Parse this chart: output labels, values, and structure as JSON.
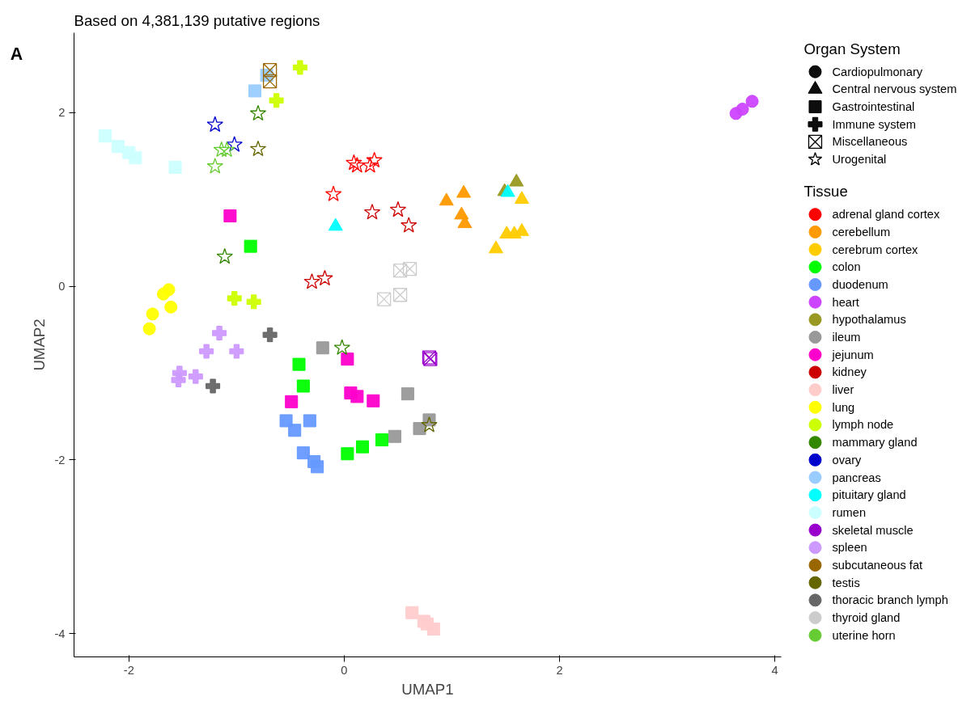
{
  "chart_data": {
    "type": "scatter",
    "title": "Based on 4,381,139 putative regions",
    "xlabel": "UMAP1",
    "ylabel": "UMAP2",
    "annotations": [
      "A"
    ],
    "xlim": [
      -2.51,
      4.06
    ],
    "ylim": [
      -4.27,
      2.92
    ],
    "xticks": [
      -2,
      0,
      2,
      4
    ],
    "yticks": [
      -4,
      -2,
      0,
      2
    ],
    "grid": false,
    "legend": "right",
    "legend_title": [
      "Organ System",
      "Tissue"
    ],
    "series": [
      {
        "name": "Cardiopulmonary",
        "marker": "circle",
        "color": "#000000"
      },
      {
        "name": "Central nervous system",
        "marker": "triangle",
        "color": "#000000"
      },
      {
        "name": "Gastrointestinal",
        "marker": "square",
        "color": "#000000"
      },
      {
        "name": "Immune system",
        "marker": "cross",
        "color": "#000000"
      },
      {
        "name": "Miscellaneous",
        "color": "#000000"
      },
      {
        "name": "Urogenital",
        "marker": "star",
        "color": "#000000"
      },
      {
        "name": "adrenal gland cortex",
        "marker": "star",
        "color": "#ff0000",
        "x": [
          0.09,
          0.12,
          0.24,
          0.28,
          -0.1
        ],
        "values": [
          1.42,
          1.39,
          1.39,
          1.45,
          1.06
        ]
      },
      {
        "name": "cerebellum",
        "marker": "triangle",
        "color": "#ff9900",
        "x": [
          0.95,
          1.11,
          1.09,
          1.12
        ],
        "values": [
          0.98,
          1.07,
          0.82,
          0.72
        ]
      },
      {
        "name": "cerebrum cortex",
        "marker": "triangle",
        "color": "#ffcc00",
        "x": [
          1.65,
          1.51,
          1.58,
          1.65,
          1.41
        ],
        "values": [
          1.0,
          0.6,
          0.6,
          0.63,
          0.43
        ]
      },
      {
        "name": "colon",
        "marker": "square",
        "color": "#00ff00",
        "x": [
          -0.87,
          -0.42,
          -0.38,
          0.03,
          0.17,
          0.35
        ],
        "values": [
          0.46,
          -0.9,
          -1.15,
          -1.93,
          -1.85,
          -1.77
        ]
      },
      {
        "name": "duodenum",
        "marker": "square",
        "color": "#6699ff",
        "x": [
          -0.54,
          -0.46,
          -0.32,
          -0.38,
          -0.28,
          -0.25
        ],
        "values": [
          -1.55,
          -1.66,
          -1.55,
          -1.92,
          -2.02,
          -2.08
        ]
      },
      {
        "name": "heart",
        "marker": "circle",
        "color": "#cc44ff",
        "x": [
          3.64,
          3.7,
          3.79
        ],
        "values": [
          1.99,
          2.04,
          2.13
        ]
      },
      {
        "name": "hypothalamus",
        "marker": "triangle",
        "color": "#999922",
        "x": [
          1.6,
          1.49
        ],
        "values": [
          1.2,
          1.09
        ]
      },
      {
        "name": "ileum",
        "marker": "square",
        "color": "#999999",
        "x": [
          -0.2,
          0.59,
          0.47,
          0.7,
          0.79
        ],
        "values": [
          -0.71,
          -1.24,
          -1.73,
          -1.64,
          -1.54
        ]
      },
      {
        "name": "jejunum",
        "marker": "square",
        "color": "#ff00cc",
        "x": [
          -1.06,
          0.03,
          0.06,
          0.12,
          0.27,
          -0.49
        ],
        "values": [
          0.81,
          -0.84,
          -1.23,
          -1.27,
          -1.32,
          -1.33
        ]
      },
      {
        "name": "kidney",
        "marker": "star",
        "color": "#cc0000",
        "x": [
          0.26,
          0.5,
          0.6,
          -0.3,
          -0.18
        ],
        "values": [
          0.85,
          0.88,
          0.7,
          0.05,
          0.09
        ]
      },
      {
        "name": "liver",
        "marker": "square",
        "color": "#ffcccc",
        "x": [
          0.63,
          0.74,
          0.77,
          0.83
        ],
        "values": [
          -3.76,
          -3.86,
          -3.89,
          -3.95
        ]
      },
      {
        "name": "lung",
        "marker": "circle",
        "color": "#ffff00",
        "x": [
          -1.63,
          -1.68,
          -1.61,
          -1.78,
          -1.81
        ],
        "values": [
          -0.04,
          -0.09,
          -0.24,
          -0.32,
          -0.49
        ]
      },
      {
        "name": "lymph node",
        "marker": "cross",
        "color": "#ccff00",
        "x": [
          -0.41,
          -0.63,
          -1.02,
          -0.84
        ],
        "values": [
          2.52,
          2.14,
          -0.14,
          -0.18
        ]
      },
      {
        "name": "mammary gland",
        "marker": "star",
        "color": "#338800",
        "x": [
          -0.8,
          -1.11,
          -0.02
        ],
        "values": [
          1.99,
          0.34,
          -0.71
        ]
      },
      {
        "name": "ovary",
        "marker": "star",
        "color": "#0000cc",
        "x": [
          -1.2,
          -1.02
        ],
        "values": [
          1.86,
          1.63
        ]
      },
      {
        "name": "pancreas",
        "marker": "square",
        "color": "#99ccff",
        "x": [
          -0.83,
          -0.72
        ],
        "values": [
          2.25,
          2.43
        ]
      },
      {
        "name": "pituitary gland",
        "marker": "triangle",
        "color": "#00ffff",
        "x": [
          -0.08,
          1.52
        ],
        "values": [
          0.69,
          1.08
        ]
      },
      {
        "name": "rumen",
        "marker": "square",
        "color": "#ccffff",
        "x": [
          -2.22,
          -2.1,
          -2.0,
          -1.94,
          -1.57
        ],
        "values": [
          1.73,
          1.61,
          1.54,
          1.48,
          1.37
        ]
      },
      {
        "name": "skeletal muscle",
        "color": "#9900cc",
        "x": [
          0.79,
          0.8
        ],
        "values": [
          -0.82,
          -0.84
        ]
      },
      {
        "name": "spleen",
        "marker": "cross",
        "color": "#cc99ff",
        "x": [
          -1.16,
          -1.28,
          -1.0,
          -1.38,
          -1.53,
          -1.54
        ],
        "values": [
          -0.54,
          -0.75,
          -0.75,
          -1.04,
          -1.0,
          -1.08
        ]
      },
      {
        "name": "subcutaneous fat",
        "color": "#996600",
        "x": [
          -0.69,
          -0.69
        ],
        "values": [
          2.49,
          2.36
        ]
      },
      {
        "name": "testis",
        "marker": "star",
        "color": "#666600",
        "x": [
          -0.8,
          0.79
        ],
        "values": [
          1.58,
          -1.6
        ]
      },
      {
        "name": "thoracic branch lymph",
        "marker": "cross",
        "color": "#666666",
        "x": [
          -0.69,
          -1.22
        ],
        "values": [
          -0.56,
          -1.15
        ]
      },
      {
        "name": "thyroid gland",
        "color": "#cccccc",
        "x": [
          0.52,
          0.61,
          0.37,
          0.52
        ],
        "values": [
          0.18,
          0.2,
          -0.15,
          -0.1
        ]
      },
      {
        "name": "uterine horn",
        "marker": "star",
        "color": "#66cc33",
        "x": [
          -1.14,
          -1.09,
          -1.2
        ],
        "values": [
          1.57,
          1.57,
          1.38
        ]
      }
    ]
  }
}
